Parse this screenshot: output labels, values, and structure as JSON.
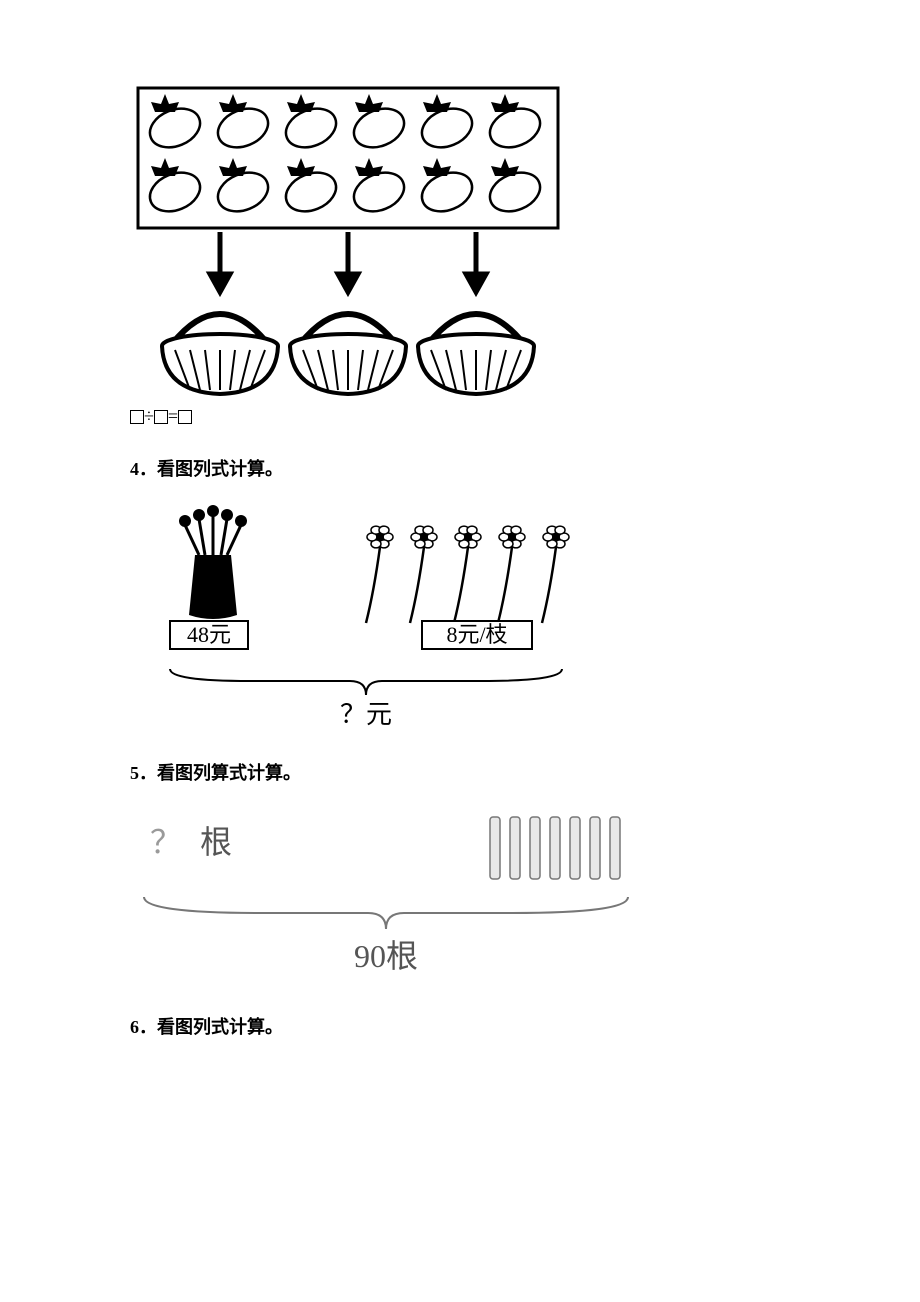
{
  "q3": {
    "equation_template": "□÷□=□",
    "eggplants": {
      "rows": 2,
      "cols": 6,
      "box_stroke": "#000000",
      "box_fill": "#ffffff"
    },
    "baskets": 3,
    "arrow_count": 3
  },
  "q4": {
    "label": "4．看图列式计算。",
    "vase_price_label": "48元",
    "flower_count": 5,
    "flower_price_label": "8元/枝",
    "total_label": "？元"
  },
  "q5": {
    "label": "5．看图列算式计算。",
    "left_label": "？根",
    "stick_count": 7,
    "total_label": "90根"
  },
  "q6": {
    "label": "6．看图列式计算。"
  },
  "colors": {
    "black": "#000000",
    "white": "#ffffff",
    "gray": "#9a9a9a",
    "lightgray": "#c9c9c9"
  }
}
